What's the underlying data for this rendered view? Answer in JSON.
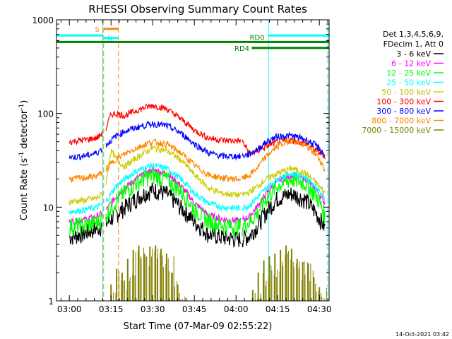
{
  "chart_data": {
    "type": "line",
    "title": "RHESSI Observing Summary Count Rates",
    "xlabel": "Start Time (07-Mar-09 02:55:22)",
    "ylabel": "Count Rate (s⁻¹ detector⁻¹)",
    "ylabel_parts": {
      "main": "Count Rate (s",
      "exp1": "-1",
      "mid": " detector",
      "exp2": "-1",
      "end": ")"
    },
    "yscale": "log",
    "xlim": [
      "02:55:22",
      "04:33:30"
    ],
    "ylim": [
      1,
      1000
    ],
    "x_ticks": [
      "03:00",
      "03:15",
      "03:30",
      "03:45",
      "04:00",
      "04:15",
      "04:30"
    ],
    "y_ticks": [
      "1",
      "10",
      "100",
      "1000"
    ],
    "footer_date": "14-Oct-2021 03:42",
    "legend": {
      "header": [
        "Det 1,3,4,5,6,9,",
        "FDecim 1, Att 0"
      ],
      "entries": [
        {
          "label": "3 - 6 keV",
          "color": "#000000"
        },
        {
          "label": "6 - 12 keV",
          "color": "#ff00ff"
        },
        {
          "label": "12 - 25 keV",
          "color": "#00ff00"
        },
        {
          "label": "25 - 50 keV",
          "color": "#00ffff"
        },
        {
          "label": "50 - 100 keV",
          "color": "#cccc00"
        },
        {
          "label": "100 - 300 keV",
          "color": "#ff0000"
        },
        {
          "label": "300 - 800 keV",
          "color": "#0000ff"
        },
        {
          "label": "800 - 7000 keV",
          "color": "#ff8800"
        },
        {
          "label": "7000 - 15000 keV",
          "color": "#808000"
        }
      ]
    },
    "markers": [
      {
        "label": "S",
        "color": "#ff8800",
        "start": "03:12:20",
        "end": "03:17:40",
        "value": 800
      },
      {
        "label": "N",
        "color": "#00ffff",
        "start": "03:12:20",
        "end": "03:17:40",
        "value": 640
      },
      {
        "label": "RD0",
        "color": "#008000",
        "start": "02:55:22",
        "end": "04:33:30",
        "value": 580
      },
      {
        "label": "RD4",
        "color": "#008000",
        "start": "04:05:40",
        "end": "04:33:30",
        "value": 500
      }
    ],
    "night_bars": [
      {
        "start": "02:55:22",
        "end": "03:12:00",
        "value": 680
      },
      {
        "start": "04:11:40",
        "end": "04:33:30",
        "value": 680
      }
    ],
    "vlines": [
      {
        "time": "03:12:00",
        "color": "#00ffff",
        "style": "solid"
      },
      {
        "time": "03:12:20",
        "color": "#ff8800",
        "style": "dashed"
      },
      {
        "time": "03:17:40",
        "color": "#ff8800",
        "style": "dashed"
      },
      {
        "time": "04:11:40",
        "color": "#00ffff",
        "style": "solid"
      },
      {
        "time": "04:33:00",
        "color": "#00ffff",
        "style": "dashed"
      }
    ],
    "series": [
      {
        "name": "3 - 6 keV",
        "color": "#000000",
        "x": [
          "03:00",
          "03:05",
          "03:10",
          "03:13",
          "03:17",
          "03:20",
          "03:25",
          "03:30",
          "03:35",
          "03:40",
          "03:45",
          "03:50",
          "03:55",
          "04:00",
          "04:02",
          "04:05",
          "04:08",
          "04:11",
          "04:15",
          "04:20",
          "04:25",
          "04:29",
          "04:32"
        ],
        "values": [
          4.8,
          5.2,
          6,
          6.5,
          8.5,
          10,
          13,
          15.5,
          14,
          10,
          7,
          5.2,
          4.8,
          4.6,
          4.6,
          5,
          6.5,
          9,
          12.5,
          14,
          12,
          8.5,
          6
        ]
      },
      {
        "name": "6 - 12 keV",
        "color": "#ff00ff",
        "x": [
          "03:00",
          "03:05",
          "03:10",
          "03:13",
          "03:17",
          "03:20",
          "03:25",
          "03:30",
          "03:35",
          "03:40",
          "03:45",
          "03:50",
          "03:55",
          "04:00",
          "04:02",
          "04:05",
          "04:08",
          "04:11",
          "04:15",
          "04:20",
          "04:25",
          "04:29",
          "04:32"
        ],
        "values": [
          7,
          7.3,
          8,
          9,
          13,
          16,
          21,
          25,
          23,
          17,
          11,
          8.2,
          7.5,
          7.2,
          7.2,
          8,
          10.5,
          14,
          19,
          22,
          20,
          15,
          11
        ]
      },
      {
        "name": "12 - 25 keV",
        "color": "#00ff00",
        "x": [
          "03:00",
          "03:05",
          "03:10",
          "03:13",
          "03:17",
          "03:20",
          "03:25",
          "03:30",
          "03:35",
          "03:40",
          "03:45",
          "03:50",
          "03:55",
          "04:00",
          "04:02",
          "04:05",
          "04:08",
          "04:11",
          "04:15",
          "04:20",
          "04:25",
          "04:29",
          "04:32"
        ],
        "values": [
          6.3,
          6.4,
          6.9,
          8,
          12,
          14.5,
          19,
          22,
          20,
          15,
          9.5,
          7.2,
          6.5,
          6.2,
          6.2,
          7,
          9,
          12.5,
          17,
          20,
          18,
          13,
          8
        ]
      },
      {
        "name": "25 - 50 keV",
        "color": "#00ffff",
        "x": [
          "03:00",
          "03:05",
          "03:10",
          "03:13",
          "03:17",
          "03:20",
          "03:25",
          "03:30",
          "03:35",
          "03:40",
          "03:45",
          "03:50",
          "03:55",
          "04:00",
          "04:02",
          "04:05",
          "04:08",
          "04:11",
          "04:15",
          "04:20",
          "04:25",
          "04:29",
          "04:32"
        ],
        "values": [
          9,
          9.3,
          10,
          11,
          17,
          20,
          25,
          28,
          26,
          20,
          14,
          11,
          10,
          9.8,
          9.8,
          10.5,
          13,
          16,
          20,
          23,
          21,
          16,
          12
        ]
      },
      {
        "name": "50 - 100 keV",
        "color": "#cccc00",
        "x": [
          "03:00",
          "03:05",
          "03:10",
          "03:13",
          "03:15",
          "03:17",
          "03:20",
          "03:25",
          "03:30",
          "03:35",
          "03:40",
          "03:45",
          "03:50",
          "03:55",
          "04:00",
          "04:02",
          "04:05",
          "04:08",
          "04:11",
          "04:15",
          "04:20",
          "04:25",
          "04:29",
          "04:32"
        ],
        "values": [
          11.5,
          11.8,
          12.5,
          15,
          40,
          32,
          27,
          35,
          43,
          40,
          32,
          22,
          16,
          14,
          13.5,
          13.5,
          14.5,
          17,
          20,
          23,
          26,
          23,
          18,
          14
        ]
      },
      {
        "name": "100 - 300 keV",
        "color": "#ff0000",
        "x": [
          "03:00",
          "03:05",
          "03:10",
          "03:13",
          "03:15",
          "03:17",
          "03:20",
          "03:25",
          "03:30",
          "03:35",
          "03:40",
          "03:45",
          "03:50",
          "03:55",
          "04:00",
          "04:02",
          "04:05",
          "04:08",
          "04:11",
          "04:15",
          "04:20",
          "04:25",
          "04:29",
          "04:32"
        ],
        "values": [
          50,
          52,
          55,
          65,
          98,
          100,
          95,
          110,
          122,
          112,
          88,
          66,
          55,
          52,
          51,
          51,
          37,
          40,
          45,
          50,
          52,
          48,
          40,
          35
        ]
      },
      {
        "name": "300 - 800 keV",
        "color": "#0000ff",
        "x": [
          "03:00",
          "03:05",
          "03:10",
          "03:13",
          "03:17",
          "03:20",
          "03:25",
          "03:30",
          "03:35",
          "03:40",
          "03:45",
          "03:50",
          "03:55",
          "04:00",
          "04:02",
          "04:05",
          "04:08",
          "04:11",
          "04:15",
          "04:20",
          "04:25",
          "04:29",
          "04:32"
        ],
        "values": [
          34,
          35,
          38,
          45,
          58,
          65,
          72,
          78,
          74,
          62,
          47,
          38,
          35,
          35,
          35,
          37,
          42,
          50,
          57,
          58,
          53,
          45,
          36
        ]
      },
      {
        "name": "800 - 7000 keV",
        "color": "#ff8800",
        "x": [
          "03:00",
          "03:05",
          "03:10",
          "03:13",
          "03:17",
          "03:20",
          "03:25",
          "03:30",
          "03:35",
          "03:40",
          "03:45",
          "03:50",
          "03:55",
          "04:00",
          "04:02",
          "04:05",
          "04:08",
          "04:11",
          "04:15",
          "04:20",
          "04:25",
          "04:29",
          "04:32"
        ],
        "values": [
          20,
          20.5,
          21.5,
          25,
          33,
          37,
          44,
          50,
          47,
          38,
          28,
          22,
          20.5,
          20,
          20,
          22,
          27,
          35,
          45,
          52,
          45,
          36,
          25
        ]
      },
      {
        "name": "7000 - 15000 keV",
        "color": "#808000",
        "x": [
          "03:15",
          "03:17",
          "03:19",
          "03:21",
          "03:23",
          "03:25",
          "03:27",
          "03:29",
          "03:31",
          "03:33",
          "03:35",
          "03:37",
          "03:39",
          "04:06",
          "04:08",
          "04:10",
          "04:12",
          "04:14",
          "04:16",
          "04:18",
          "04:20",
          "04:22",
          "04:24",
          "04:26",
          "04:28",
          "04:30"
        ],
        "values": [
          1.5,
          2.2,
          2.0,
          2.8,
          3.5,
          3.9,
          3.2,
          3.8,
          3.9,
          3.6,
          3.2,
          2.0,
          1.5,
          1.3,
          2.0,
          2.7,
          3.0,
          3.2,
          3.5,
          3.9,
          3.6,
          2.8,
          2.6,
          2.5,
          1.8,
          1.4
        ]
      }
    ]
  }
}
